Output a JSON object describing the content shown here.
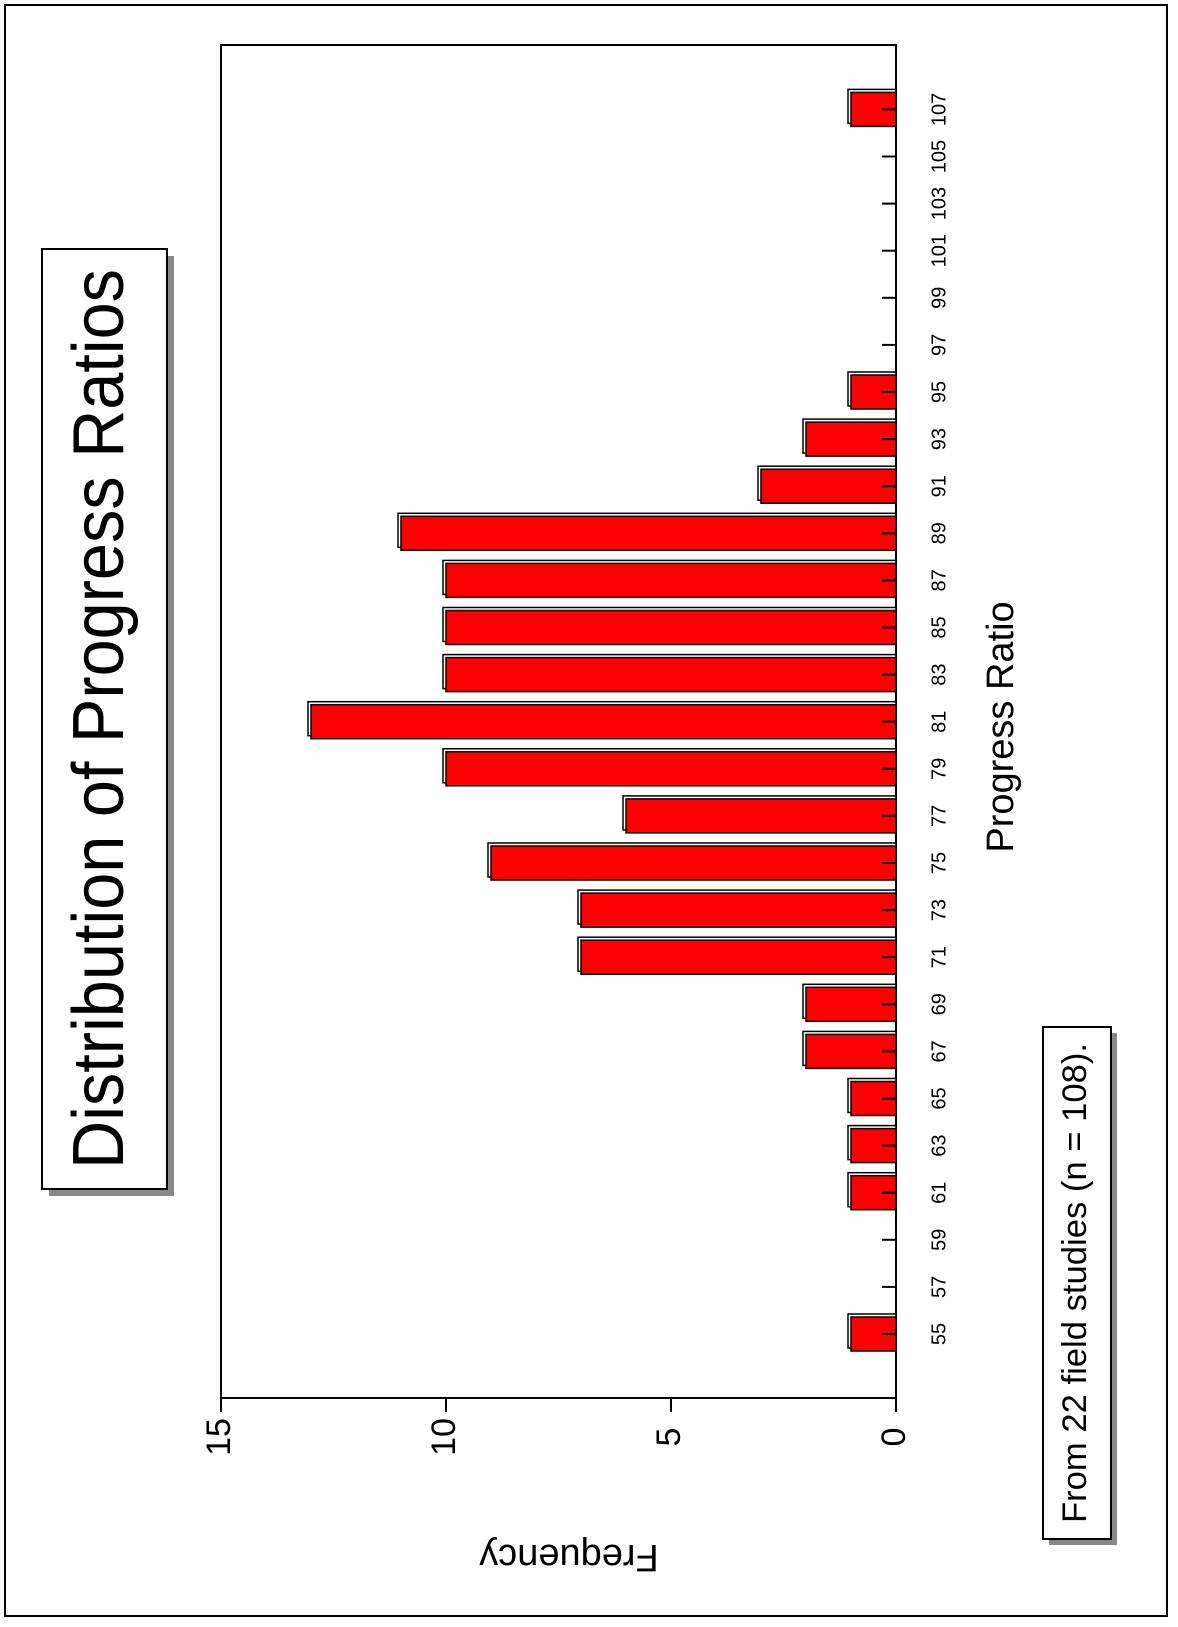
{
  "chart_data": {
    "type": "bar",
    "title": "Distribution of Progress Ratios",
    "xlabel": "Progress Ratio",
    "ylabel": "Frequency",
    "note": "From 22 field studies (n = 108).",
    "ylim": [
      0,
      15
    ],
    "yticks": [
      "0",
      "5",
      "10",
      "15"
    ],
    "xticks": [
      "55",
      "57",
      "59",
      "61",
      "63",
      "65",
      "67",
      "69",
      "71",
      "73",
      "75",
      "77",
      "79",
      "81",
      "83",
      "85",
      "87",
      "89",
      "91",
      "93",
      "95",
      "97",
      "99",
      "101",
      "103",
      "105",
      "107"
    ],
    "categories": [
      "55",
      "57",
      "59",
      "61",
      "63",
      "65",
      "67",
      "69",
      "71",
      "73",
      "75",
      "77",
      "79",
      "81",
      "83",
      "85",
      "87",
      "89",
      "91",
      "93",
      "95",
      "97",
      "99",
      "101",
      "103",
      "105",
      "107"
    ],
    "values": [
      1,
      0,
      0,
      1,
      1,
      1,
      2,
      2,
      7,
      7,
      9,
      6,
      10,
      13,
      10,
      10,
      10,
      11,
      3,
      2,
      1,
      0,
      0,
      0,
      0,
      0,
      1
    ],
    "orientation": "rotated-90-ccw",
    "colors": {
      "bar": "#ff0000",
      "bar_outline": "#000000",
      "shadow": "#888888"
    }
  }
}
